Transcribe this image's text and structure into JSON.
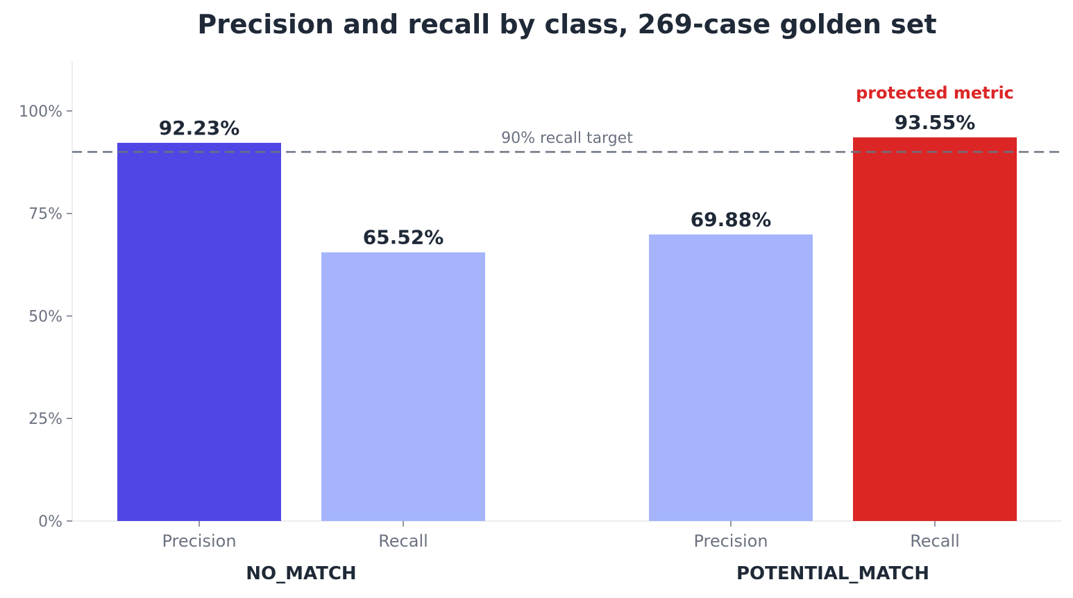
{
  "chart_data": {
    "type": "bar",
    "title": "Precision and recall by class, 269-case golden set",
    "groups": [
      {
        "name": "NO_MATCH",
        "bars": [
          {
            "label": "Precision",
            "value": 92.23,
            "value_label": "92.23%",
            "color": "#4f46e5"
          },
          {
            "label": "Recall",
            "value": 65.52,
            "value_label": "65.52%",
            "color": "#a5b4fc"
          }
        ]
      },
      {
        "name": "POTENTIAL_MATCH",
        "bars": [
          {
            "label": "Precision",
            "value": 69.88,
            "value_label": "69.88%",
            "color": "#a5b4fc"
          },
          {
            "label": "Recall",
            "value": 93.55,
            "value_label": "93.55%",
            "color": "#dc2626",
            "annotation": "protected metric"
          }
        ]
      }
    ],
    "ylim": [
      0,
      112
    ],
    "yticks": [
      0,
      25,
      50,
      75,
      100
    ],
    "ytick_labels": [
      "0%",
      "25%",
      "50%",
      "75%",
      "100%"
    ],
    "reference_line": {
      "value": 90,
      "label": "90% recall target",
      "color": "#6b7280",
      "style": "dashed"
    },
    "annotation_color": "#dc2626",
    "grid": false,
    "legend": "none"
  }
}
